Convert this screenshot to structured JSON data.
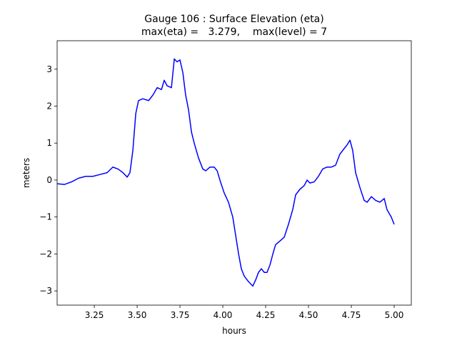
{
  "chart_data": {
    "type": "line",
    "title": "Gauge 106 : Surface Elevation (eta)",
    "subtitle": "max(eta) =   3.279,    max(level) = 7",
    "x_label": "hours",
    "y_label": "meters",
    "color": "#0000ff",
    "x": [
      3.033,
      3.075,
      3.117,
      3.158,
      3.2,
      3.242,
      3.283,
      3.325,
      3.358,
      3.388,
      3.417,
      3.442,
      3.458,
      3.475,
      3.492,
      3.508,
      3.533,
      3.567,
      3.592,
      3.617,
      3.642,
      3.658,
      3.675,
      3.7,
      3.717,
      3.733,
      3.75,
      3.767,
      3.783,
      3.8,
      3.817,
      3.833,
      3.858,
      3.883,
      3.9,
      3.925,
      3.95,
      3.967,
      3.983,
      4.008,
      4.033,
      4.058,
      4.075,
      4.092,
      4.108,
      4.125,
      4.15,
      4.175,
      4.192,
      4.208,
      4.225,
      4.242,
      4.258,
      4.275,
      4.292,
      4.308,
      4.333,
      4.358,
      4.383,
      4.408,
      4.425,
      4.45,
      4.475,
      4.492,
      4.508,
      4.533,
      4.558,
      4.583,
      4.608,
      4.633,
      4.658,
      4.683,
      4.708,
      4.725,
      4.742,
      4.758,
      4.775,
      4.8,
      4.825,
      4.842,
      4.867,
      4.892,
      4.917,
      4.942,
      4.958,
      4.983,
      5.0
    ],
    "values": [
      -0.1,
      -0.12,
      -0.05,
      0.05,
      0.1,
      0.1,
      0.15,
      0.2,
      0.35,
      0.3,
      0.2,
      0.08,
      0.2,
      0.8,
      1.8,
      2.15,
      2.2,
      2.15,
      2.3,
      2.5,
      2.45,
      2.7,
      2.55,
      2.5,
      3.279,
      3.2,
      3.25,
      2.9,
      2.3,
      1.9,
      1.3,
      1.0,
      0.6,
      0.3,
      0.25,
      0.35,
      0.35,
      0.25,
      0.0,
      -0.35,
      -0.6,
      -1.0,
      -1.5,
      -2.0,
      -2.4,
      -2.6,
      -2.75,
      -2.87,
      -2.7,
      -2.5,
      -2.4,
      -2.5,
      -2.5,
      -2.3,
      -2.0,
      -1.75,
      -1.65,
      -1.55,
      -1.2,
      -0.8,
      -0.4,
      -0.25,
      -0.15,
      0.0,
      -0.08,
      -0.05,
      0.1,
      0.3,
      0.35,
      0.35,
      0.4,
      0.7,
      0.85,
      0.95,
      1.08,
      0.8,
      0.2,
      -0.2,
      -0.55,
      -0.6,
      -0.45,
      -0.55,
      -0.6,
      -0.5,
      -0.8,
      -1.0,
      -1.2
    ],
    "xlim": [
      3.033,
      5.1
    ],
    "ylim": [
      -3.385,
      3.77
    ],
    "xticks": [
      3.25,
      {
        "value": 3.5,
        "label": "3.50"
      },
      3.75,
      {
        "value": 4,
        "label": "4.00"
      },
      4.25,
      {
        "value": 4.5,
        "label": "4.50"
      },
      4.75,
      {
        "value": 5,
        "label": "5.00"
      }
    ],
    "yticks": [
      {
        "value": -3,
        "label": "−3"
      },
      {
        "value": -2,
        "label": "−2"
      },
      {
        "value": -1,
        "label": "−1"
      },
      0,
      1,
      2,
      3
    ],
    "grid": false
  }
}
